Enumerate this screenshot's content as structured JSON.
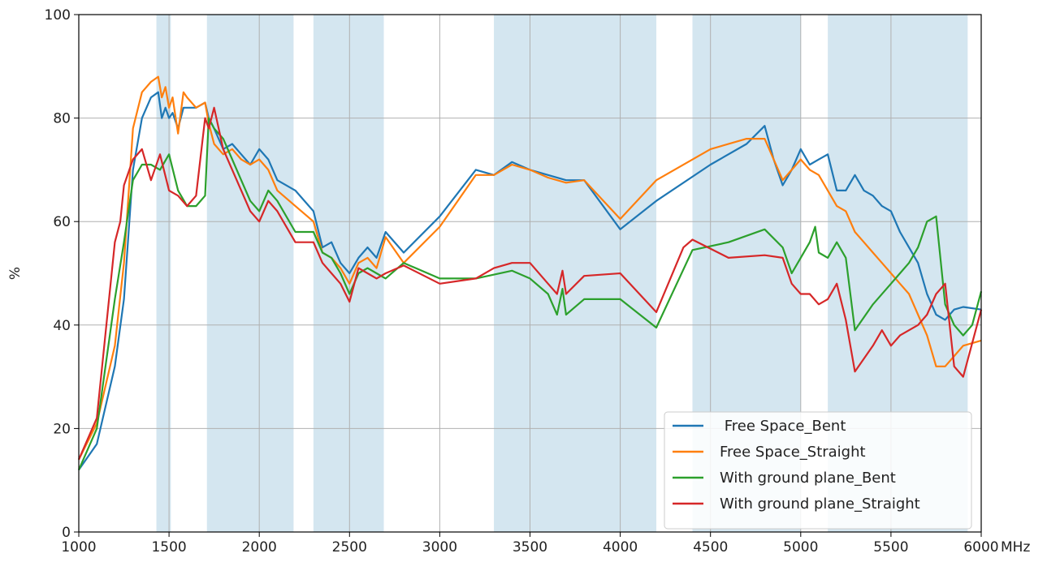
{
  "chart_data": {
    "type": "line",
    "xlabel": "",
    "ylabel": "%",
    "x_unit_label": "MHz",
    "xlim": [
      1000,
      6000
    ],
    "ylim": [
      0,
      100
    ],
    "x_ticks": [
      1000,
      1500,
      2000,
      2500,
      3000,
      3500,
      4000,
      4500,
      5000,
      5500,
      6000
    ],
    "y_ticks": [
      0,
      20,
      40,
      60,
      80,
      100
    ],
    "grid": true,
    "legend_position": "lower-right",
    "shaded_bands": [
      [
        1430,
        1510
      ],
      [
        1710,
        2190
      ],
      [
        2300,
        2690
      ],
      [
        3300,
        4200
      ],
      [
        4400,
        5000
      ],
      [
        5150,
        5925
      ]
    ],
    "band_color": "#d4e6f0",
    "series": [
      {
        "name": " Free Space_Bent",
        "color": "#1f77b4",
        "x": [
          1000,
          1100,
          1200,
          1250,
          1300,
          1350,
          1400,
          1440,
          1460,
          1480,
          1500,
          1520,
          1550,
          1580,
          1600,
          1650,
          1700,
          1720,
          1750,
          1800,
          1850,
          1900,
          1950,
          2000,
          2050,
          2100,
          2200,
          2300,
          2350,
          2400,
          2450,
          2500,
          2550,
          2600,
          2650,
          2700,
          2800,
          3000,
          3200,
          3300,
          3400,
          3500,
          3600,
          3700,
          3800,
          4000,
          4200,
          4500,
          4700,
          4800,
          4850,
          4900,
          4950,
          5000,
          5050,
          5100,
          5150,
          5200,
          5250,
          5300,
          5350,
          5400,
          5450,
          5500,
          5550,
          5600,
          5650,
          5700,
          5750,
          5800,
          5850,
          5900,
          6000
        ],
        "y": [
          12,
          17,
          32,
          45,
          70,
          80,
          84,
          85,
          80,
          82,
          80,
          81,
          78,
          82,
          82,
          82,
          83,
          80,
          78,
          74,
          75,
          73,
          71,
          74,
          72,
          68,
          66,
          62,
          55,
          56,
          52,
          50,
          53,
          55,
          53,
          58,
          54,
          61,
          70,
          69,
          71.5,
          70,
          69,
          68,
          68,
          58.5,
          64,
          71,
          75,
          78.5,
          72,
          67,
          70,
          74,
          71,
          72,
          73,
          66,
          66,
          69,
          66,
          65,
          63,
          62,
          58,
          55,
          52,
          46,
          42,
          41,
          43,
          43.5,
          43
        ]
      },
      {
        "name": "Free Space_Straight",
        "color": "#ff7f0e",
        "x": [
          1000,
          1100,
          1200,
          1250,
          1300,
          1350,
          1400,
          1440,
          1460,
          1480,
          1500,
          1520,
          1550,
          1580,
          1600,
          1650,
          1700,
          1720,
          1750,
          1800,
          1850,
          1900,
          1950,
          2000,
          2050,
          2100,
          2200,
          2300,
          2350,
          2400,
          2450,
          2500,
          2550,
          2600,
          2650,
          2700,
          2800,
          3000,
          3200,
          3300,
          3400,
          3500,
          3600,
          3700,
          3800,
          4000,
          4200,
          4500,
          4700,
          4800,
          4850,
          4900,
          4950,
          5000,
          5050,
          5100,
          5150,
          5200,
          5250,
          5300,
          5350,
          5400,
          5450,
          5500,
          5550,
          5600,
          5650,
          5700,
          5750,
          5800,
          5850,
          5900,
          6000
        ],
        "y": [
          14,
          21,
          36,
          52,
          78,
          85,
          87,
          88,
          84,
          86,
          82,
          84,
          77,
          85,
          84,
          82,
          83,
          79,
          75,
          73,
          74,
          72,
          71,
          72,
          70,
          66,
          63,
          60,
          54,
          53,
          51,
          48,
          52,
          53,
          51,
          57,
          52,
          59,
          69,
          69,
          71,
          70,
          68.5,
          67.5,
          68,
          60.5,
          68,
          74,
          76,
          76,
          72,
          68,
          70,
          72,
          70,
          69,
          66,
          63,
          62,
          58,
          56,
          54,
          52,
          50,
          48,
          46,
          42,
          38,
          32,
          32,
          34,
          36,
          37
        ]
      },
      {
        "name": "With ground plane_Bent",
        "color": "#2ca02c",
        "x": [
          1000,
          1100,
          1200,
          1250,
          1300,
          1350,
          1400,
          1450,
          1500,
          1550,
          1600,
          1650,
          1700,
          1720,
          1750,
          1800,
          1850,
          1900,
          1950,
          2000,
          2050,
          2100,
          2200,
          2300,
          2350,
          2400,
          2450,
          2500,
          2550,
          2600,
          2650,
          2700,
          2800,
          3000,
          3200,
          3400,
          3500,
          3600,
          3650,
          3680,
          3700,
          3800,
          4000,
          4200,
          4400,
          4600,
          4800,
          4900,
          4950,
          5000,
          5050,
          5080,
          5100,
          5150,
          5200,
          5250,
          5300,
          5400,
          5500,
          5550,
          5600,
          5650,
          5700,
          5750,
          5800,
          5850,
          5900,
          5950,
          6000
        ],
        "y": [
          12,
          20,
          45,
          56,
          68,
          71,
          71,
          70,
          73,
          66,
          63,
          63,
          65,
          80,
          78,
          76,
          72,
          68,
          64,
          62,
          66,
          64,
          58,
          58,
          54,
          53,
          50,
          46,
          50,
          51,
          50,
          49,
          52,
          49,
          49,
          50.5,
          49,
          46,
          42,
          47,
          42,
          45,
          45,
          39.5,
          54.5,
          56,
          58.5,
          55,
          50,
          53,
          56,
          59,
          54,
          53,
          56,
          53,
          39,
          44,
          48,
          50,
          52,
          55,
          60,
          61,
          44,
          40,
          38,
          40,
          46.5
        ]
      },
      {
        "name": "With ground plane_Straight",
        "color": "#d62728",
        "x": [
          1000,
          1100,
          1200,
          1230,
          1250,
          1300,
          1350,
          1400,
          1450,
          1500,
          1550,
          1600,
          1650,
          1700,
          1720,
          1750,
          1800,
          1850,
          1900,
          1950,
          2000,
          2050,
          2100,
          2200,
          2300,
          2350,
          2400,
          2450,
          2500,
          2550,
          2600,
          2650,
          2700,
          2800,
          3000,
          3200,
          3300,
          3400,
          3500,
          3600,
          3650,
          3680,
          3700,
          3800,
          4000,
          4200,
          4350,
          4400,
          4600,
          4800,
          4900,
          4950,
          5000,
          5050,
          5100,
          5150,
          5200,
          5250,
          5300,
          5400,
          5450,
          5500,
          5550,
          5600,
          5650,
          5700,
          5750,
          5800,
          5850,
          5900,
          6000
        ],
        "y": [
          14,
          22,
          56,
          60,
          67,
          72,
          74,
          68,
          73,
          66,
          65,
          63,
          65,
          80,
          78,
          82,
          74,
          70,
          66,
          62,
          60,
          64,
          62,
          56,
          56,
          52,
          50,
          48,
          44.5,
          51,
          50,
          49,
          50,
          51.5,
          48,
          49,
          51,
          52,
          52,
          48,
          46,
          50.5,
          46,
          49.5,
          50,
          42.5,
          55,
          56.5,
          53,
          53.5,
          53,
          48,
          46,
          46,
          44,
          45,
          48,
          41,
          31,
          36,
          39,
          36,
          38,
          39,
          40,
          42,
          46,
          48,
          32,
          30,
          43
        ]
      }
    ]
  }
}
